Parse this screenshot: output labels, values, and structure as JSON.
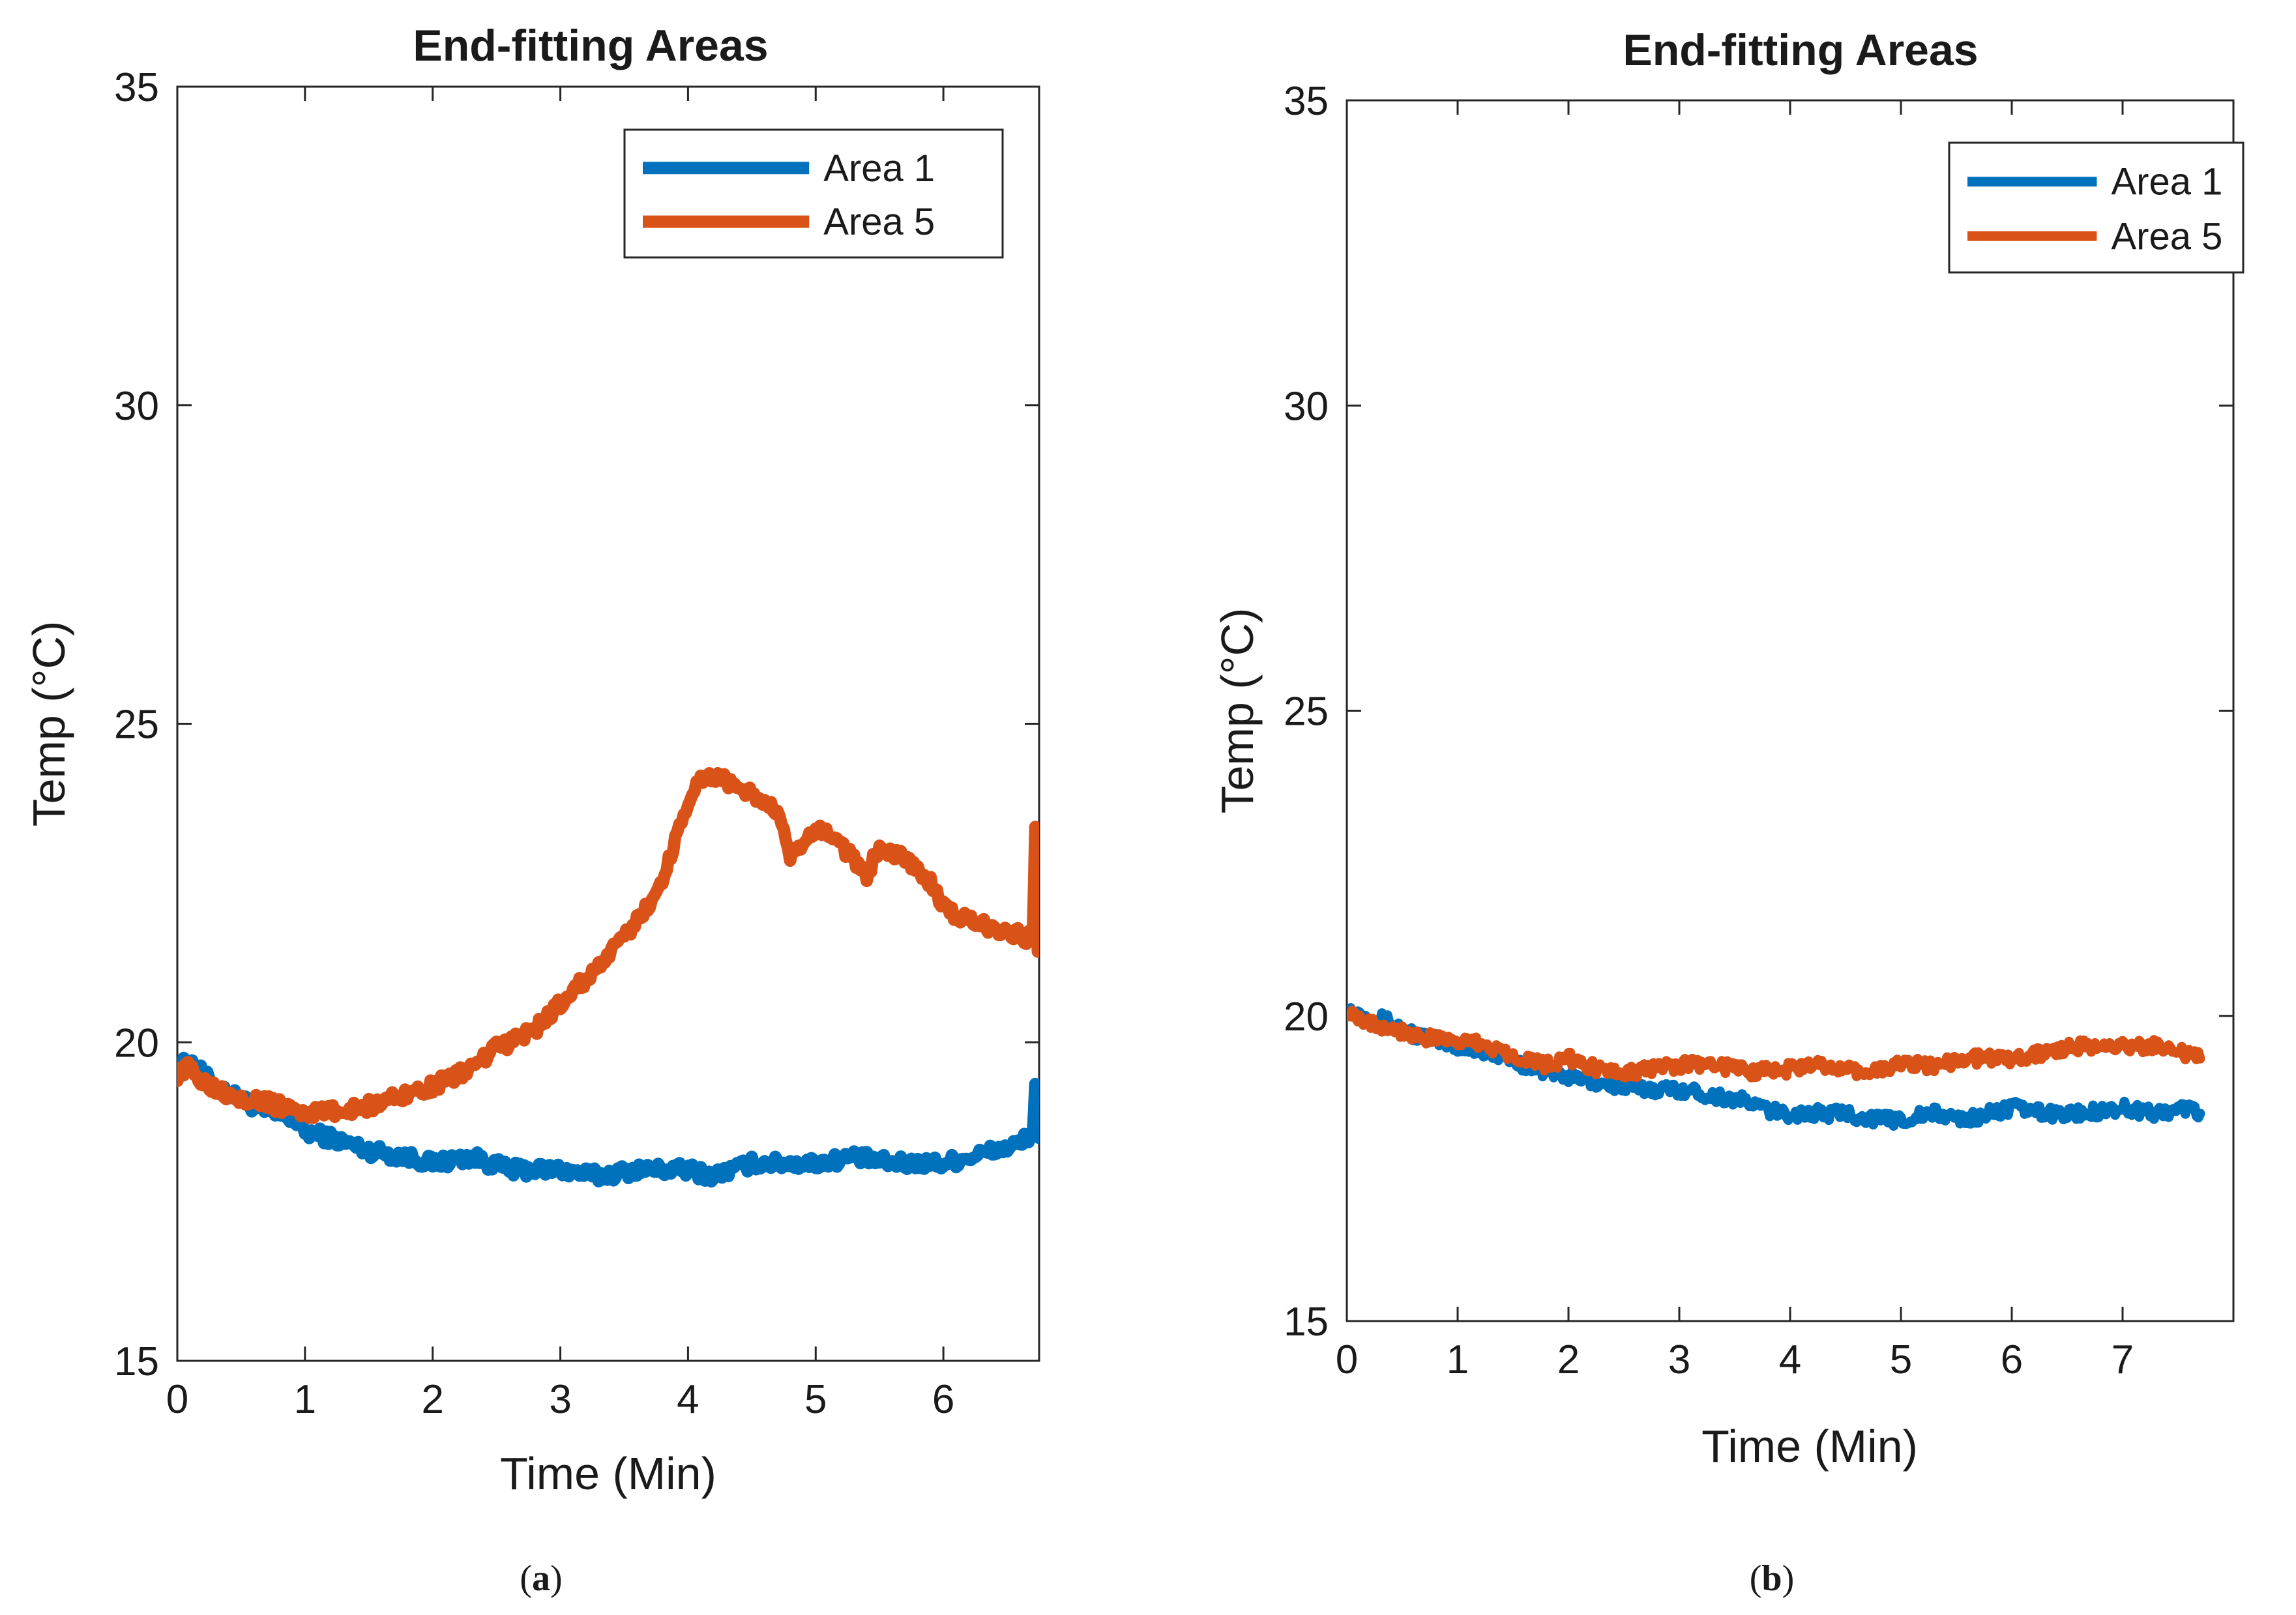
{
  "chart_data": [
    {
      "type": "line",
      "panel_label": "a",
      "title": "End-fitting Areas",
      "xlabel": "Time (Min)",
      "ylabel": "Temp (°C)",
      "xlim": [
        0,
        6.75
      ],
      "ylim": [
        15,
        35
      ],
      "xticks": [
        0,
        1,
        2,
        3,
        4,
        5,
        6
      ],
      "yticks": [
        15,
        20,
        25,
        30,
        35
      ],
      "grid": false,
      "legend": "top-right",
      "series": [
        {
          "name": "Area 1",
          "color": "#0072BD",
          "x": [
            0,
            0.1,
            0.2,
            0.3,
            0.5,
            0.7,
            0.9,
            1.0,
            1.2,
            1.5,
            1.8,
            2.0,
            2.3,
            2.6,
            3.0,
            3.3,
            3.6,
            4.0,
            4.2,
            4.5,
            4.8,
            5.0,
            5.3,
            5.6,
            6.0,
            6.2,
            6.4,
            6.6,
            6.7,
            6.72,
            6.75
          ],
          "y": [
            19.6,
            19.7,
            19.5,
            19.3,
            19.1,
            18.9,
            18.8,
            18.6,
            18.5,
            18.3,
            18.2,
            18.1,
            18.2,
            18.0,
            18.0,
            17.9,
            18.0,
            18.0,
            17.9,
            18.1,
            18.1,
            18.1,
            18.2,
            18.1,
            18.1,
            18.2,
            18.3,
            18.4,
            18.6,
            19.3,
            18.5
          ]
        },
        {
          "name": "Area 5",
          "color": "#D95319",
          "x": [
            0,
            0.1,
            0.2,
            0.4,
            0.6,
            0.8,
            1.0,
            1.2,
            1.5,
            1.8,
            2.0,
            2.3,
            2.5,
            2.8,
            3.0,
            3.2,
            3.4,
            3.6,
            3.8,
            3.9,
            4.0,
            4.1,
            4.2,
            4.3,
            4.5,
            4.7,
            4.8,
            5.0,
            5.1,
            5.2,
            5.4,
            5.5,
            5.7,
            5.9,
            6.0,
            6.2,
            6.4,
            6.6,
            6.7,
            6.72,
            6.74,
            6.75
          ],
          "y": [
            19.5,
            19.6,
            19.4,
            19.2,
            19.1,
            19.0,
            18.9,
            18.9,
            19.0,
            19.2,
            19.3,
            19.6,
            19.9,
            20.2,
            20.6,
            21.0,
            21.4,
            21.9,
            22.5,
            23.2,
            23.8,
            24.1,
            24.2,
            24.1,
            23.9,
            23.6,
            22.9,
            23.3,
            23.3,
            23.1,
            22.6,
            23.1,
            22.9,
            22.5,
            22.1,
            21.9,
            21.8,
            21.7,
            21.6,
            23.4,
            21.5,
            21.7
          ]
        }
      ]
    },
    {
      "type": "line",
      "panel_label": "b",
      "title": "End-fitting Areas",
      "xlabel": "Time (Min)",
      "ylabel": "Temp (°C)",
      "xlim": [
        0,
        8.0
      ],
      "ylim": [
        15,
        35
      ],
      "xticks": [
        0,
        1,
        2,
        3,
        4,
        5,
        6,
        7
      ],
      "yticks": [
        15,
        20,
        25,
        30,
        35
      ],
      "grid": false,
      "legend": "top-right",
      "series": [
        {
          "name": "Area 1",
          "color": "#0072BD",
          "x": [
            0,
            0.2,
            0.4,
            0.6,
            0.8,
            1.0,
            1.3,
            1.6,
            2.0,
            2.3,
            2.6,
            3.0,
            3.3,
            3.6,
            3.9,
            4.2,
            4.5,
            4.8,
            5.0,
            5.3,
            5.6,
            6.0,
            6.3,
            6.6,
            7.0,
            7.3,
            7.6,
            7.7
          ],
          "y": [
            20.1,
            20.0,
            19.9,
            19.7,
            19.6,
            19.5,
            19.4,
            19.2,
            19.0,
            18.9,
            18.8,
            18.8,
            18.7,
            18.6,
            18.4,
            18.4,
            18.4,
            18.3,
            18.3,
            18.4,
            18.3,
            18.5,
            18.4,
            18.4,
            18.5,
            18.4,
            18.5,
            18.4
          ]
        },
        {
          "name": "Area 5",
          "color": "#D95319",
          "x": [
            0,
            0.2,
            0.4,
            0.6,
            0.8,
            1.0,
            1.3,
            1.6,
            1.8,
            2.0,
            2.3,
            2.6,
            3.0,
            3.3,
            3.6,
            3.9,
            4.2,
            4.5,
            4.8,
            5.0,
            5.3,
            5.6,
            6.0,
            6.3,
            6.6,
            7.0,
            7.3,
            7.5,
            7.7
          ],
          "y": [
            20.1,
            19.9,
            19.8,
            19.7,
            19.6,
            19.6,
            19.5,
            19.3,
            19.2,
            19.3,
            19.1,
            19.1,
            19.2,
            19.2,
            19.1,
            19.1,
            19.2,
            19.1,
            19.1,
            19.2,
            19.2,
            19.3,
            19.3,
            19.4,
            19.5,
            19.5,
            19.5,
            19.4,
            19.3
          ]
        }
      ]
    }
  ]
}
